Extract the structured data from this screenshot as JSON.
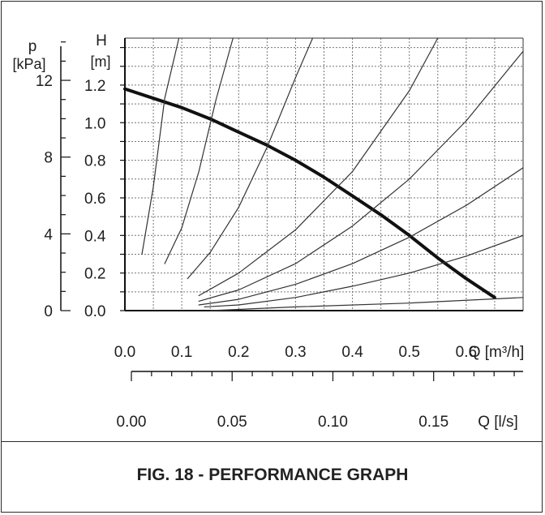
{
  "caption": "FIG. 18 - PERFORMANCE GRAPH",
  "chart_data": {
    "type": "line",
    "x_axis": {
      "label": "Q [m³/h]",
      "range": [
        0.0,
        0.7
      ],
      "ticks": [
        "0.0",
        "0.1",
        "0.2",
        "0.3",
        "0.4",
        "0.5",
        "0.6"
      ]
    },
    "x2_axis": {
      "label": "Q [l/s]",
      "range": [
        0.0,
        0.1944
      ],
      "ticks": [
        "0.00",
        "0.05",
        "0.10",
        "0.15"
      ]
    },
    "y_axis": {
      "label_unit": "H",
      "label_bracket": "[m]",
      "range": [
        0.0,
        1.45
      ],
      "ticks": [
        "0.0",
        "0.2",
        "0.4",
        "0.6",
        "0.8",
        "1.0",
        "1.2"
      ]
    },
    "y2_axis": {
      "label_unit": "p",
      "label_bracket": "[kPa]",
      "range": [
        0,
        14.2
      ],
      "ticks": [
        "0",
        "4",
        "8",
        "12"
      ]
    },
    "grid": true,
    "series": [
      {
        "role": "pump-curve",
        "x": [
          0.0,
          0.05,
          0.1,
          0.15,
          0.2,
          0.25,
          0.3,
          0.35,
          0.4,
          0.45,
          0.5,
          0.55,
          0.6,
          0.65
        ],
        "y": [
          1.18,
          1.13,
          1.08,
          1.02,
          0.95,
          0.88,
          0.8,
          0.71,
          0.61,
          0.51,
          0.4,
          0.28,
          0.17,
          0.07
        ]
      },
      {
        "role": "system-curve",
        "x": [
          0.03,
          0.05,
          0.07,
          0.095
        ],
        "y": [
          0.3,
          0.66,
          1.13,
          1.45
        ]
      },
      {
        "role": "system-curve",
        "x": [
          0.07,
          0.1,
          0.13,
          0.16,
          0.19
        ],
        "y": [
          0.25,
          0.44,
          0.74,
          1.12,
          1.45
        ]
      },
      {
        "role": "system-curve",
        "x": [
          0.11,
          0.15,
          0.2,
          0.25,
          0.3,
          0.33
        ],
        "y": [
          0.17,
          0.31,
          0.55,
          0.87,
          1.24,
          1.45
        ]
      },
      {
        "role": "system-curve",
        "x": [
          0.13,
          0.2,
          0.3,
          0.4,
          0.5,
          0.55
        ],
        "y": [
          0.08,
          0.2,
          0.43,
          0.74,
          1.17,
          1.45
        ]
      },
      {
        "role": "system-curve",
        "x": [
          0.13,
          0.2,
          0.3,
          0.4,
          0.5,
          0.6,
          0.7
        ],
        "y": [
          0.05,
          0.11,
          0.25,
          0.45,
          0.7,
          1.01,
          1.38
        ]
      },
      {
        "role": "system-curve",
        "x": [
          0.13,
          0.2,
          0.3,
          0.4,
          0.5,
          0.6,
          0.7
        ],
        "y": [
          0.03,
          0.06,
          0.14,
          0.25,
          0.39,
          0.56,
          0.76
        ]
      },
      {
        "role": "system-curve",
        "x": [
          0.14,
          0.2,
          0.3,
          0.4,
          0.5,
          0.6,
          0.7
        ],
        "y": [
          0.02,
          0.03,
          0.07,
          0.13,
          0.2,
          0.29,
          0.4
        ]
      },
      {
        "role": "system-curve",
        "x": [
          0.15,
          0.3,
          0.5,
          0.7
        ],
        "y": [
          0.0,
          0.02,
          0.04,
          0.07
        ]
      }
    ]
  }
}
